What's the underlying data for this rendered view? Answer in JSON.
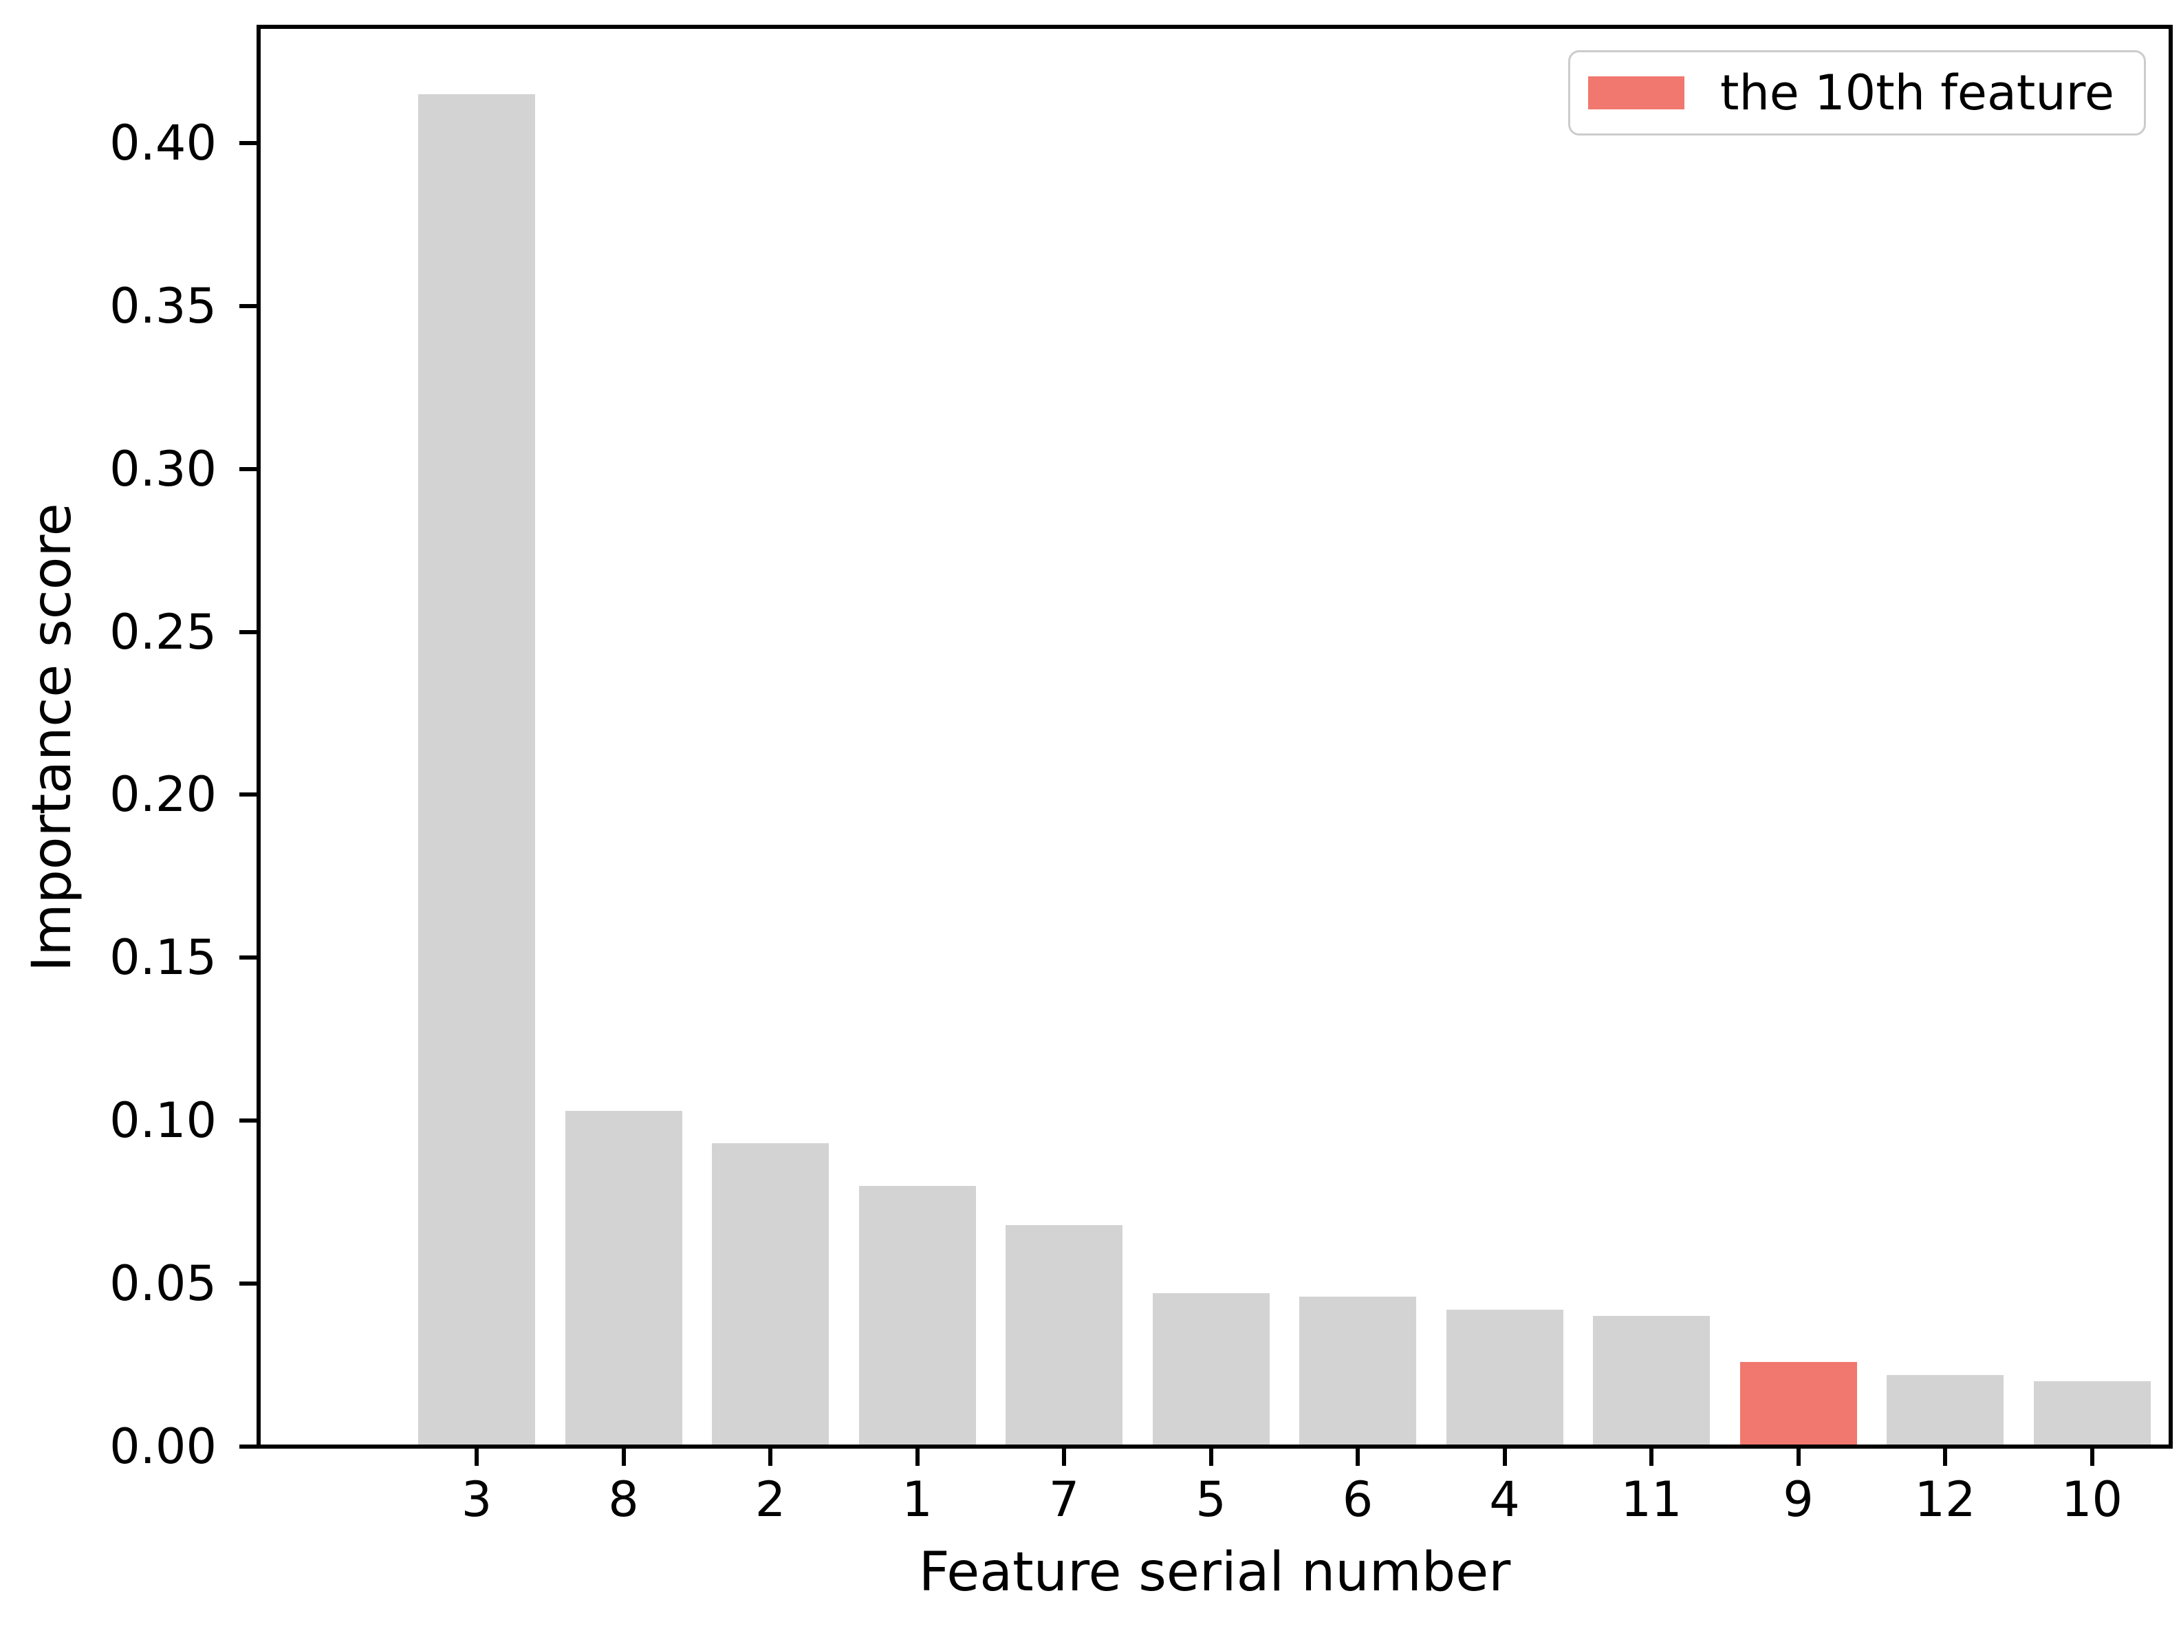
{
  "chart_data": {
    "type": "bar",
    "title": "",
    "xlabel": "Feature serial number",
    "ylabel": "Importance score",
    "categories": [
      "3",
      "8",
      "2",
      "1",
      "7",
      "5",
      "6",
      "4",
      "11",
      "9",
      "12",
      "10"
    ],
    "values": [
      0.415,
      0.103,
      0.093,
      0.08,
      0.068,
      0.047,
      0.046,
      0.042,
      0.04,
      0.026,
      0.022,
      0.02
    ],
    "highlight_index": 9,
    "highlight_category": "9",
    "bar_color": "#d3d3d3",
    "highlight_color": "#f1786e",
    "axis_color": "#000000",
    "ylim": [
      0,
      0.435
    ],
    "yticks": [
      "0.00",
      "0.05",
      "0.10",
      "0.15",
      "0.20",
      "0.25",
      "0.30",
      "0.35",
      "0.40"
    ],
    "grid": false,
    "legend": {
      "label": "the 10th feature",
      "swatch_color": "#f1786e",
      "position": "upper right"
    }
  }
}
